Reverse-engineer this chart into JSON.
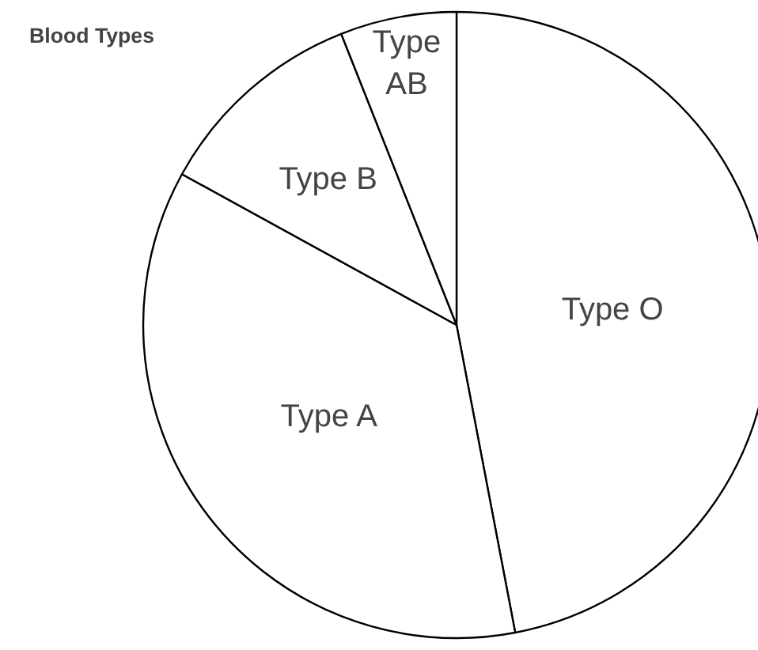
{
  "chart_data": {
    "type": "pie",
    "title": "Blood Types",
    "categories": [
      "Type O",
      "Type A",
      "Type B",
      "Type AB"
    ],
    "values": [
      47,
      36,
      11,
      6
    ],
    "colors": [
      "#ffffff",
      "#ffffff",
      "#ffffff",
      "#ffffff"
    ]
  }
}
